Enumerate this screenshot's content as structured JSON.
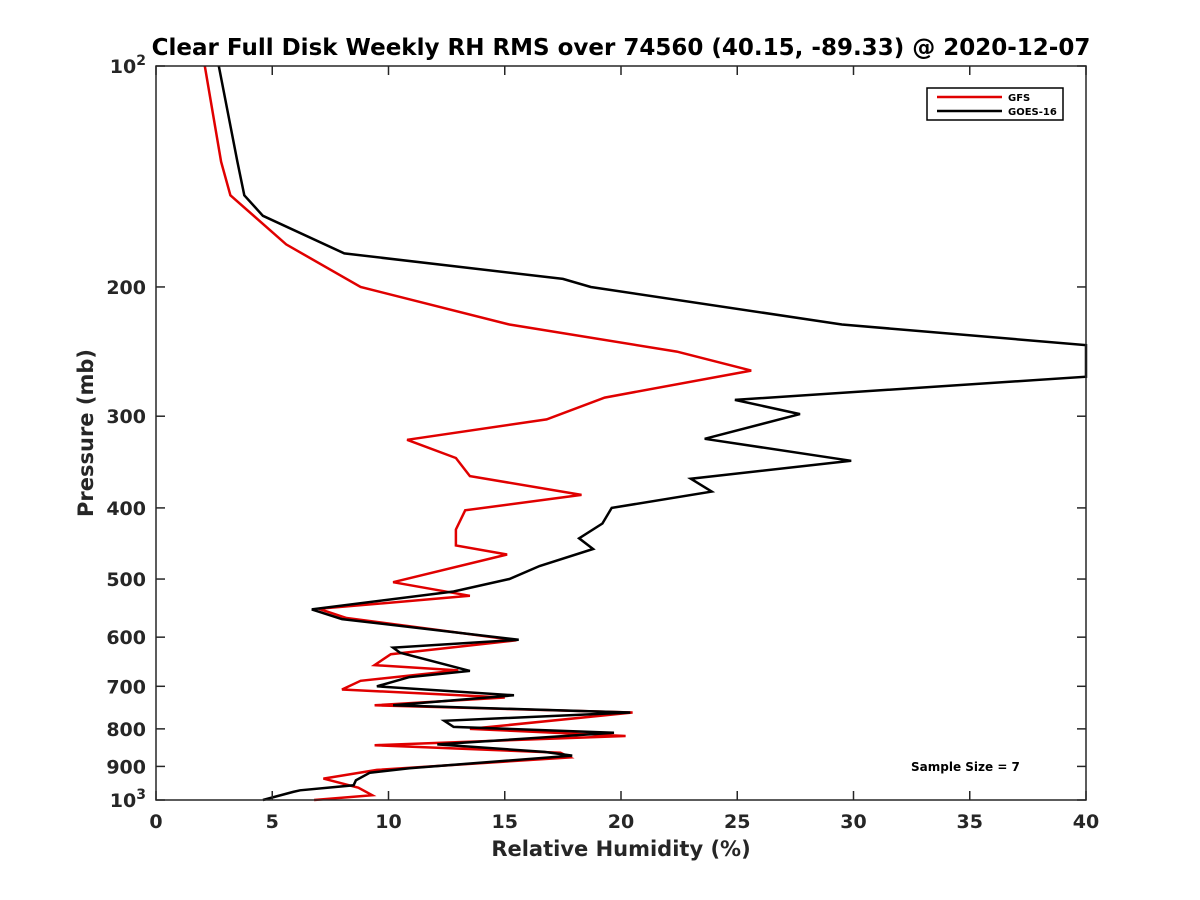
{
  "chart_data": {
    "type": "line",
    "title": "Clear Full Disk Weekly RH RMS over 74560 (40.15, -89.33) @ 2020-12-07",
    "xlabel": "Relative Humidity (%)",
    "ylabel": "Pressure (mb)",
    "xlim": [
      0,
      40
    ],
    "ylim": [
      100,
      1000
    ],
    "y_scale": "log",
    "y_reversed": true,
    "x_ticks": [
      0,
      5,
      10,
      15,
      20,
      25,
      30,
      35,
      40
    ],
    "y_ticks": [
      {
        "value": 100,
        "label": "10",
        "sup": "2"
      },
      {
        "value": 200,
        "label": "200",
        "sup": ""
      },
      {
        "value": 300,
        "label": "300",
        "sup": ""
      },
      {
        "value": 400,
        "label": "400",
        "sup": ""
      },
      {
        "value": 500,
        "label": "500",
        "sup": ""
      },
      {
        "value": 600,
        "label": "600",
        "sup": ""
      },
      {
        "value": 700,
        "label": "700",
        "sup": ""
      },
      {
        "value": 800,
        "label": "800",
        "sup": ""
      },
      {
        "value": 900,
        "label": "900",
        "sup": ""
      },
      {
        "value": 1000,
        "label": "10",
        "sup": "3"
      }
    ],
    "grid": false,
    "legend_position": "top-right",
    "annotation": "Sample Size = 7",
    "series": [
      {
        "name": "GFS",
        "color": "#e00000",
        "points": [
          [
            2.1,
            100
          ],
          [
            2.8,
            135
          ],
          [
            3.2,
            150
          ],
          [
            5.6,
            175
          ],
          [
            8.8,
            200
          ],
          [
            15.2,
            225
          ],
          [
            22.4,
            245
          ],
          [
            25.6,
            260
          ],
          [
            19.3,
            283
          ],
          [
            16.8,
            303
          ],
          [
            10.8,
            323
          ],
          [
            12.9,
            342
          ],
          [
            13.5,
            362
          ],
          [
            18.3,
            384
          ],
          [
            13.3,
            403
          ],
          [
            12.9,
            428
          ],
          [
            12.9,
            450
          ],
          [
            15.1,
            463
          ],
          [
            10.2,
            505
          ],
          [
            13.5,
            527
          ],
          [
            7.0,
            549
          ],
          [
            8.2,
            565
          ],
          [
            15.5,
            606
          ],
          [
            10.1,
            633
          ],
          [
            9.4,
            655
          ],
          [
            13.0,
            666
          ],
          [
            8.8,
            688
          ],
          [
            8.0,
            707
          ],
          [
            15.0,
            725
          ],
          [
            9.4,
            743
          ],
          [
            20.5,
            760
          ],
          [
            13.5,
            800
          ],
          [
            20.2,
            818
          ],
          [
            9.4,
            842
          ],
          [
            17.4,
            862
          ],
          [
            17.8,
            875
          ],
          [
            9.5,
            910
          ],
          [
            7.2,
            935
          ],
          [
            8.7,
            962
          ],
          [
            9.3,
            985
          ],
          [
            6.8,
            1000
          ]
        ]
      },
      {
        "name": "GOES-16",
        "color": "#000000",
        "points": [
          [
            2.7,
            100
          ],
          [
            3.5,
            135
          ],
          [
            3.8,
            150
          ],
          [
            4.6,
            160
          ],
          [
            8.1,
            180
          ],
          [
            17.5,
            195
          ],
          [
            18.7,
            200
          ],
          [
            29.5,
            225
          ],
          [
            40.0,
            240
          ],
          [
            40.0,
            265
          ],
          [
            24.9,
            285
          ],
          [
            27.7,
            298
          ],
          [
            23.6,
            322
          ],
          [
            29.9,
            345
          ],
          [
            23.0,
            365
          ],
          [
            23.9,
            380
          ],
          [
            19.6,
            400
          ],
          [
            19.2,
            420
          ],
          [
            18.2,
            440
          ],
          [
            18.8,
            455
          ],
          [
            16.5,
            480
          ],
          [
            15.2,
            500
          ],
          [
            12.8,
            520
          ],
          [
            6.7,
            550
          ],
          [
            8.0,
            567
          ],
          [
            15.6,
            605
          ],
          [
            10.2,
            620
          ],
          [
            10.5,
            630
          ],
          [
            13.5,
            667
          ],
          [
            10.9,
            680
          ],
          [
            9.5,
            700
          ],
          [
            15.4,
            720
          ],
          [
            10.2,
            743
          ],
          [
            20.4,
            760
          ],
          [
            12.4,
            780
          ],
          [
            12.8,
            795
          ],
          [
            19.7,
            810
          ],
          [
            12.1,
            840
          ],
          [
            16.7,
            860
          ],
          [
            17.9,
            870
          ],
          [
            10.9,
            905
          ],
          [
            9.2,
            918
          ],
          [
            8.6,
            940
          ],
          [
            8.5,
            955
          ],
          [
            6.2,
            970
          ],
          [
            5.9,
            975
          ],
          [
            4.6,
            1000
          ]
        ]
      }
    ]
  }
}
